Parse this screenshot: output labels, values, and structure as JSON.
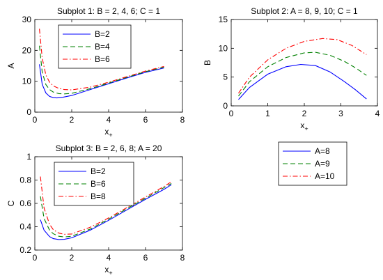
{
  "chart_data": [
    {
      "type": "line",
      "title": "Subplot 1: B = 2, 4, 6; C = 1",
      "xlabel": "x",
      "xlabel_sub": "+",
      "ylabel": "A",
      "xlim": [
        0,
        8
      ],
      "ylim": [
        0,
        30
      ],
      "xticks": [
        "0",
        "2",
        "4",
        "6",
        "8"
      ],
      "yticks": [
        "0",
        "10",
        "20",
        "30"
      ],
      "legend_position": "top-left",
      "series": [
        {
          "name": "B=2",
          "color": "#0000ff",
          "dash": "solid",
          "x": [
            0.25,
            0.4,
            0.6,
            0.8,
            1.0,
            1.2,
            1.5,
            2,
            3,
            4,
            5,
            6,
            7
          ],
          "y": [
            15.5,
            9.0,
            6.2,
            5.1,
            4.7,
            4.6,
            4.8,
            5.4,
            7.3,
            9.2,
            11.1,
            12.9,
            14.3
          ]
        },
        {
          "name": "B=4",
          "color": "#008000",
          "dash": "dashed",
          "x": [
            0.25,
            0.4,
            0.6,
            0.8,
            1.0,
            1.3,
            1.6,
            2,
            3,
            4,
            5,
            6,
            7
          ],
          "y": [
            21.5,
            13.0,
            8.9,
            7.3,
            6.5,
            6.0,
            5.9,
            6.1,
            7.6,
            9.4,
            11.3,
            13.1,
            14.6
          ]
        },
        {
          "name": "B=6",
          "color": "#ff0000",
          "dash": "dashdot",
          "x": [
            0.25,
            0.4,
            0.6,
            0.8,
            1.0,
            1.3,
            1.6,
            2,
            3,
            4,
            5,
            6,
            7
          ],
          "y": [
            27.0,
            17.5,
            12.0,
            9.7,
            8.5,
            7.7,
            7.3,
            7.2,
            8.1,
            9.7,
            11.5,
            13.3,
            14.8
          ]
        }
      ]
    },
    {
      "type": "line",
      "title": "Subplot 2: A = 8, 9, 10; C = 1",
      "xlabel": "x",
      "xlabel_sub": "+",
      "ylabel": "B",
      "xlim": [
        0,
        4
      ],
      "ylim": [
        0,
        15
      ],
      "xticks": [
        "0",
        "1",
        "2",
        "3",
        "4"
      ],
      "yticks": [
        "0",
        "5",
        "10",
        "15"
      ],
      "legend_position": "below-plot",
      "series": [
        {
          "name": "A=8",
          "color": "#0000ff",
          "dash": "solid",
          "x": [
            0.2,
            0.5,
            1.0,
            1.5,
            1.9,
            2.3,
            2.7,
            3.1,
            3.4,
            3.7
          ],
          "y": [
            1.1,
            3.2,
            5.5,
            6.8,
            7.2,
            7.0,
            5.9,
            4.2,
            2.8,
            1.2
          ]
        },
        {
          "name": "A=9",
          "color": "#008000",
          "dash": "dashed",
          "x": [
            0.2,
            0.5,
            1.0,
            1.5,
            2.0,
            2.3,
            2.7,
            3.1,
            3.4,
            3.7
          ],
          "y": [
            1.7,
            4.2,
            6.8,
            8.4,
            9.2,
            9.3,
            8.8,
            7.7,
            6.6,
            5.3
          ]
        },
        {
          "name": "A=10",
          "color": "#ff0000",
          "dash": "dashdot",
          "x": [
            0.2,
            0.5,
            1.0,
            1.5,
            2.0,
            2.5,
            2.9,
            3.3,
            3.7
          ],
          "y": [
            2.2,
            5.0,
            8.0,
            10.0,
            11.2,
            11.7,
            11.5,
            10.5,
            8.9
          ]
        }
      ]
    },
    {
      "type": "line",
      "title": "Subplot 3: B = 2, 6, 8; A = 20",
      "xlabel": "x",
      "xlabel_sub": "+",
      "ylabel": "C",
      "xlim": [
        0,
        8
      ],
      "ylim": [
        0.2,
        1
      ],
      "xticks": [
        "0",
        "2",
        "4",
        "6",
        "8"
      ],
      "yticks": [
        "0.2",
        "0.4",
        "0.6",
        "0.8",
        "1"
      ],
      "legend_position": "top-left",
      "series": [
        {
          "name": "B=2",
          "color": "#0000ff",
          "dash": "solid",
          "x": [
            0.3,
            0.5,
            0.8,
            1.0,
            1.3,
            1.6,
            2,
            3,
            4,
            5,
            6,
            7,
            7.4
          ],
          "y": [
            0.46,
            0.37,
            0.315,
            0.298,
            0.29,
            0.292,
            0.305,
            0.37,
            0.455,
            0.545,
            0.635,
            0.72,
            0.76
          ]
        },
        {
          "name": "B=6",
          "color": "#008000",
          "dash": "dashed",
          "x": [
            0.3,
            0.5,
            0.8,
            1.0,
            1.3,
            1.6,
            2,
            3,
            4,
            5,
            6,
            7,
            7.4
          ],
          "y": [
            0.66,
            0.47,
            0.37,
            0.34,
            0.318,
            0.312,
            0.318,
            0.38,
            0.465,
            0.555,
            0.645,
            0.735,
            0.77
          ]
        },
        {
          "name": "B=8",
          "color": "#ff0000",
          "dash": "dashdot",
          "x": [
            0.3,
            0.5,
            0.8,
            1.0,
            1.3,
            1.6,
            2,
            3,
            4,
            5,
            6,
            7,
            7.4
          ],
          "y": [
            0.83,
            0.56,
            0.42,
            0.375,
            0.345,
            0.335,
            0.338,
            0.395,
            0.475,
            0.565,
            0.655,
            0.745,
            0.785
          ]
        }
      ]
    }
  ]
}
